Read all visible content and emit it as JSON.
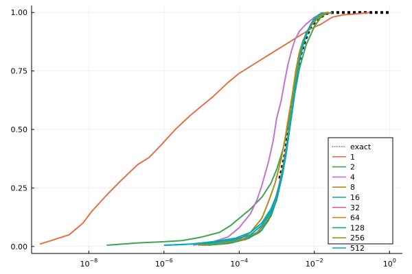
{
  "chart_data": {
    "type": "line",
    "title": "",
    "xlabel": "",
    "ylabel": "",
    "x_scale": "log10",
    "xlim": [
      3e-10,
      2.2
    ],
    "ylim": [
      -0.03,
      1.03
    ],
    "grid": true,
    "legend_position": "bottom-right",
    "x_ticks": [
      {
        "value": 1e-08,
        "base": "10",
        "exp": "−8"
      },
      {
        "value": 1e-06,
        "base": "10",
        "exp": "−6"
      },
      {
        "value": 0.0001,
        "base": "10",
        "exp": "−4"
      },
      {
        "value": 0.01,
        "base": "10",
        "exp": "−2"
      },
      {
        "value": 1,
        "base": "10",
        "exp": "0"
      }
    ],
    "y_ticks": [
      {
        "value": 0,
        "label": "0.00"
      },
      {
        "value": 0.25,
        "label": "0.25"
      },
      {
        "value": 0.5,
        "label": "0.50"
      },
      {
        "value": 0.75,
        "label": "0.75"
      },
      {
        "value": 1,
        "label": "1.00"
      }
    ],
    "series": [
      {
        "name": "exact",
        "color": "#000000",
        "style": "dotted",
        "points": [
          [
            0.0012,
            0.29
          ],
          [
            0.0016,
            0.38
          ],
          [
            0.002,
            0.48
          ],
          [
            0.0025,
            0.58
          ],
          [
            0.003,
            0.68
          ],
          [
            0.0036,
            0.76
          ],
          [
            0.0045,
            0.83
          ],
          [
            0.006,
            0.89
          ],
          [
            0.008,
            0.94
          ],
          [
            0.012,
            0.97
          ],
          [
            0.02,
            0.995
          ],
          [
            0.03,
            1.0
          ],
          [
            0.05,
            1.0
          ],
          [
            0.1,
            1.0
          ],
          [
            0.3,
            1.0
          ],
          [
            1.0,
            1.0
          ]
        ]
      },
      {
        "name": "1",
        "color": "#e26f46",
        "style": "solid",
        "points": [
          [
            5e-10,
            0.01
          ],
          [
            1e-09,
            0.025
          ],
          [
            3e-09,
            0.05
          ],
          [
            7e-09,
            0.1
          ],
          [
            1.2e-08,
            0.15
          ],
          [
            3e-08,
            0.22
          ],
          [
            7e-08,
            0.28
          ],
          [
            2e-07,
            0.35
          ],
          [
            4e-07,
            0.38
          ],
          [
            8e-07,
            0.43
          ],
          [
            2e-06,
            0.5
          ],
          [
            5e-06,
            0.56
          ],
          [
            1e-05,
            0.6
          ],
          [
            2e-05,
            0.64
          ],
          [
            5e-05,
            0.7
          ],
          [
            0.0001,
            0.74
          ],
          [
            0.0002,
            0.77
          ],
          [
            0.0005,
            0.81
          ],
          [
            0.001,
            0.84
          ],
          [
            0.002,
            0.87
          ],
          [
            0.004,
            0.9
          ],
          [
            0.008,
            0.93
          ],
          [
            0.015,
            0.95
          ],
          [
            0.03,
            0.98
          ],
          [
            0.06,
            0.99
          ],
          [
            0.15,
            0.995
          ],
          [
            0.3,
            1.0
          ]
        ]
      },
      {
        "name": "2",
        "color": "#3da44d",
        "style": "solid",
        "points": [
          [
            3e-08,
            0.005
          ],
          [
            2e-07,
            0.015
          ],
          [
            1e-06,
            0.02
          ],
          [
            3e-06,
            0.025
          ],
          [
            1e-05,
            0.04
          ],
          [
            3e-05,
            0.06
          ],
          [
            6e-05,
            0.09
          ],
          [
            0.0001,
            0.12
          ],
          [
            0.0002,
            0.16
          ],
          [
            0.0004,
            0.21
          ],
          [
            0.0007,
            0.27
          ],
          [
            0.001,
            0.33
          ],
          [
            0.0015,
            0.42
          ],
          [
            0.002,
            0.52
          ],
          [
            0.003,
            0.65
          ],
          [
            0.004,
            0.76
          ],
          [
            0.006,
            0.86
          ],
          [
            0.01,
            0.94
          ],
          [
            0.015,
            0.98
          ],
          [
            0.02,
            0.995
          ],
          [
            0.03,
            1.0
          ]
        ]
      },
      {
        "name": "4",
        "color": "#c271d2",
        "style": "solid",
        "points": [
          [
            6e-06,
            0.005
          ],
          [
            2e-05,
            0.02
          ],
          [
            5e-05,
            0.04
          ],
          [
            0.0001,
            0.08
          ],
          [
            0.0002,
            0.14
          ],
          [
            0.0003,
            0.2
          ],
          [
            0.0004,
            0.26
          ],
          [
            0.0006,
            0.36
          ],
          [
            0.0008,
            0.45
          ],
          [
            0.001,
            0.55
          ],
          [
            0.0013,
            0.62
          ],
          [
            0.0016,
            0.7
          ],
          [
            0.002,
            0.78
          ],
          [
            0.0025,
            0.84
          ],
          [
            0.003,
            0.88
          ],
          [
            0.004,
            0.92
          ],
          [
            0.006,
            0.95
          ],
          [
            0.01,
            0.98
          ],
          [
            0.02,
            1.0
          ]
        ]
      },
      {
        "name": "8",
        "color": "#ac8d18",
        "style": "solid",
        "points": [
          [
            8e-06,
            0.005
          ],
          [
            3e-05,
            0.015
          ],
          [
            0.0001,
            0.03
          ],
          [
            0.0002,
            0.06
          ],
          [
            0.0004,
            0.12
          ],
          [
            0.0006,
            0.19
          ],
          [
            0.0009,
            0.27
          ],
          [
            0.0013,
            0.37
          ],
          [
            0.0017,
            0.47
          ],
          [
            0.0021,
            0.56
          ],
          [
            0.0026,
            0.65
          ],
          [
            0.0032,
            0.75
          ],
          [
            0.004,
            0.83
          ],
          [
            0.005,
            0.88
          ],
          [
            0.007,
            0.93
          ],
          [
            0.01,
            0.96
          ],
          [
            0.015,
            0.985
          ],
          [
            0.02,
            1.0
          ]
        ]
      },
      {
        "name": "16",
        "color": "#00a9ad",
        "style": "solid",
        "points": [
          [
            1e-06,
            0.005
          ],
          [
            5e-06,
            0.01
          ],
          [
            2e-05,
            0.02
          ],
          [
            8e-05,
            0.035
          ],
          [
            0.0002,
            0.06
          ],
          [
            0.0004,
            0.1
          ],
          [
            0.0007,
            0.16
          ],
          [
            0.001,
            0.22
          ],
          [
            0.0014,
            0.3
          ],
          [
            0.0018,
            0.4
          ],
          [
            0.0022,
            0.5
          ],
          [
            0.0027,
            0.6
          ],
          [
            0.0033,
            0.7
          ],
          [
            0.004,
            0.8
          ],
          [
            0.005,
            0.87
          ],
          [
            0.007,
            0.93
          ],
          [
            0.01,
            0.97
          ],
          [
            0.014,
            0.99
          ],
          [
            0.018,
            1.0
          ]
        ]
      },
      {
        "name": "32",
        "color": "#ed5e93",
        "style": "solid",
        "points": [
          [
            1e-05,
            0.005
          ],
          [
            4e-05,
            0.015
          ],
          [
            0.00012,
            0.03
          ],
          [
            0.0003,
            0.06
          ],
          [
            0.0005,
            0.1
          ],
          [
            0.0008,
            0.17
          ],
          [
            0.0011,
            0.25
          ],
          [
            0.0015,
            0.35
          ],
          [
            0.0019,
            0.45
          ],
          [
            0.0023,
            0.55
          ],
          [
            0.0028,
            0.65
          ],
          [
            0.0034,
            0.74
          ],
          [
            0.0042,
            0.82
          ],
          [
            0.0055,
            0.89
          ],
          [
            0.0075,
            0.94
          ],
          [
            0.011,
            0.975
          ],
          [
            0.017,
            0.995
          ],
          [
            0.022,
            1.0
          ]
        ]
      },
      {
        "name": "64",
        "color": "#c68225",
        "style": "solid",
        "points": [
          [
            1.2e-05,
            0.005
          ],
          [
            5e-05,
            0.012
          ],
          [
            0.00015,
            0.03
          ],
          [
            0.00035,
            0.06
          ],
          [
            0.0006,
            0.11
          ],
          [
            0.0009,
            0.18
          ],
          [
            0.0012,
            0.26
          ],
          [
            0.0016,
            0.36
          ],
          [
            0.002,
            0.46
          ],
          [
            0.0024,
            0.56
          ],
          [
            0.0029,
            0.66
          ],
          [
            0.0035,
            0.75
          ],
          [
            0.0044,
            0.83
          ],
          [
            0.0058,
            0.9
          ],
          [
            0.008,
            0.95
          ],
          [
            0.012,
            0.98
          ],
          [
            0.018,
            0.995
          ],
          [
            0.025,
            1.0
          ]
        ]
      },
      {
        "name": "128",
        "color": "#00a98d",
        "style": "solid",
        "points": [
          [
            1.5e-05,
            0.005
          ],
          [
            6e-05,
            0.015
          ],
          [
            0.00018,
            0.035
          ],
          [
            0.0004,
            0.07
          ],
          [
            0.0007,
            0.13
          ],
          [
            0.001,
            0.2
          ],
          [
            0.0013,
            0.28
          ],
          [
            0.0017,
            0.38
          ],
          [
            0.0021,
            0.48
          ],
          [
            0.0025,
            0.58
          ],
          [
            0.003,
            0.68
          ],
          [
            0.0037,
            0.77
          ],
          [
            0.0046,
            0.85
          ],
          [
            0.006,
            0.91
          ],
          [
            0.0085,
            0.955
          ],
          [
            0.012,
            0.985
          ],
          [
            0.016,
            1.0
          ]
        ]
      },
      {
        "name": "256",
        "color": "#8e971d",
        "style": "solid",
        "points": [
          [
            1e-05,
            0.005
          ],
          [
            4e-05,
            0.015
          ],
          [
            0.00013,
            0.03
          ],
          [
            0.0003,
            0.06
          ],
          [
            0.00055,
            0.11
          ],
          [
            0.00085,
            0.18
          ],
          [
            0.0012,
            0.27
          ],
          [
            0.0016,
            0.37
          ],
          [
            0.002,
            0.47
          ],
          [
            0.0024,
            0.57
          ],
          [
            0.0029,
            0.67
          ],
          [
            0.0036,
            0.76
          ],
          [
            0.0045,
            0.84
          ],
          [
            0.006,
            0.9
          ],
          [
            0.0085,
            0.95
          ],
          [
            0.013,
            0.98
          ],
          [
            0.02,
            1.0
          ]
        ]
      },
      {
        "name": "512",
        "color": "#00a8cb",
        "style": "solid",
        "points": [
          [
            1.1e-06,
            0.005
          ],
          [
            5e-06,
            0.01
          ],
          [
            2e-05,
            0.015
          ],
          [
            8e-05,
            0.03
          ],
          [
            0.0002,
            0.05
          ],
          [
            0.0004,
            0.09
          ],
          [
            0.0007,
            0.15
          ],
          [
            0.001,
            0.22
          ],
          [
            0.0014,
            0.31
          ],
          [
            0.0018,
            0.41
          ],
          [
            0.0022,
            0.51
          ],
          [
            0.0027,
            0.61
          ],
          [
            0.0033,
            0.71
          ],
          [
            0.0041,
            0.8
          ],
          [
            0.0052,
            0.87
          ],
          [
            0.007,
            0.93
          ],
          [
            0.0095,
            0.97
          ],
          [
            0.013,
            0.99
          ],
          [
            0.017,
            1.0
          ]
        ]
      }
    ]
  }
}
